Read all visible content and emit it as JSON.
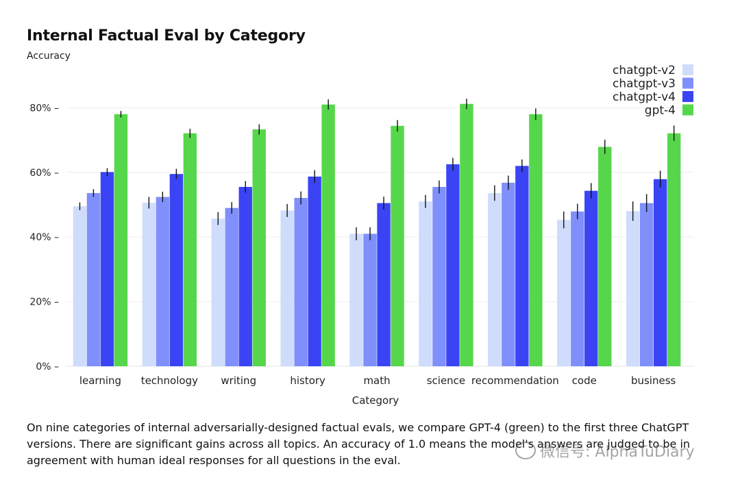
{
  "chart_data": {
    "type": "bar",
    "title": "Internal Factual Eval by Category",
    "subtitle": "Accuracy",
    "xlabel": "Category",
    "ylabel": "",
    "ylim": [
      0,
      100
    ],
    "yticks": [
      0,
      20,
      40,
      60,
      80
    ],
    "ytick_labels": [
      "0% –",
      "20% –",
      "40% –",
      "60% –",
      "80% –"
    ],
    "grid": true,
    "legend_position": "top-right",
    "categories": [
      "learning",
      "technology",
      "writing",
      "history",
      "math",
      "science",
      "recommendation",
      "code",
      "business"
    ],
    "series": [
      {
        "name": "chatgpt-v2",
        "color": "#cfdcfc",
        "values": [
          49.5,
          50.6,
          45.7,
          48.2,
          41.0,
          51.0,
          53.6,
          45.3,
          48.0
        ],
        "errors": [
          1.2,
          1.8,
          2.0,
          2.0,
          2.0,
          2.0,
          2.4,
          2.6,
          3.0
        ]
      },
      {
        "name": "chatgpt-v3",
        "color": "#7f8ffb",
        "values": [
          53.6,
          52.4,
          49.0,
          52.1,
          41.0,
          55.5,
          56.8,
          47.9,
          50.5
        ],
        "errors": [
          1.2,
          1.6,
          1.8,
          2.0,
          2.0,
          2.0,
          2.2,
          2.4,
          2.8
        ]
      },
      {
        "name": "chatgpt-v4",
        "color": "#3a44f5",
        "values": [
          60.1,
          59.5,
          55.5,
          58.7,
          50.5,
          62.5,
          62.0,
          54.3,
          57.9
        ],
        "errors": [
          1.2,
          1.6,
          1.8,
          2.0,
          2.0,
          2.0,
          2.0,
          2.4,
          2.6
        ]
      },
      {
        "name": "gpt-4",
        "color": "#56d74b",
        "values": [
          78.0,
          72.1,
          73.3,
          81.0,
          74.4,
          81.2,
          78.0,
          67.9,
          72.1
        ],
        "errors": [
          1.0,
          1.4,
          1.6,
          1.6,
          1.8,
          1.6,
          1.8,
          2.2,
          2.4
        ]
      }
    ]
  },
  "caption": "On nine categories of internal adversarially-designed factual evals, we compare GPT-4 (green) to the first three ChatGPT versions. There are significant gains across all topics. An accuracy of 1.0 means the model's answers are judged to be in agreement with human ideal responses for all questions in the eval.",
  "watermark": "微信号: AlphaTuDiary"
}
